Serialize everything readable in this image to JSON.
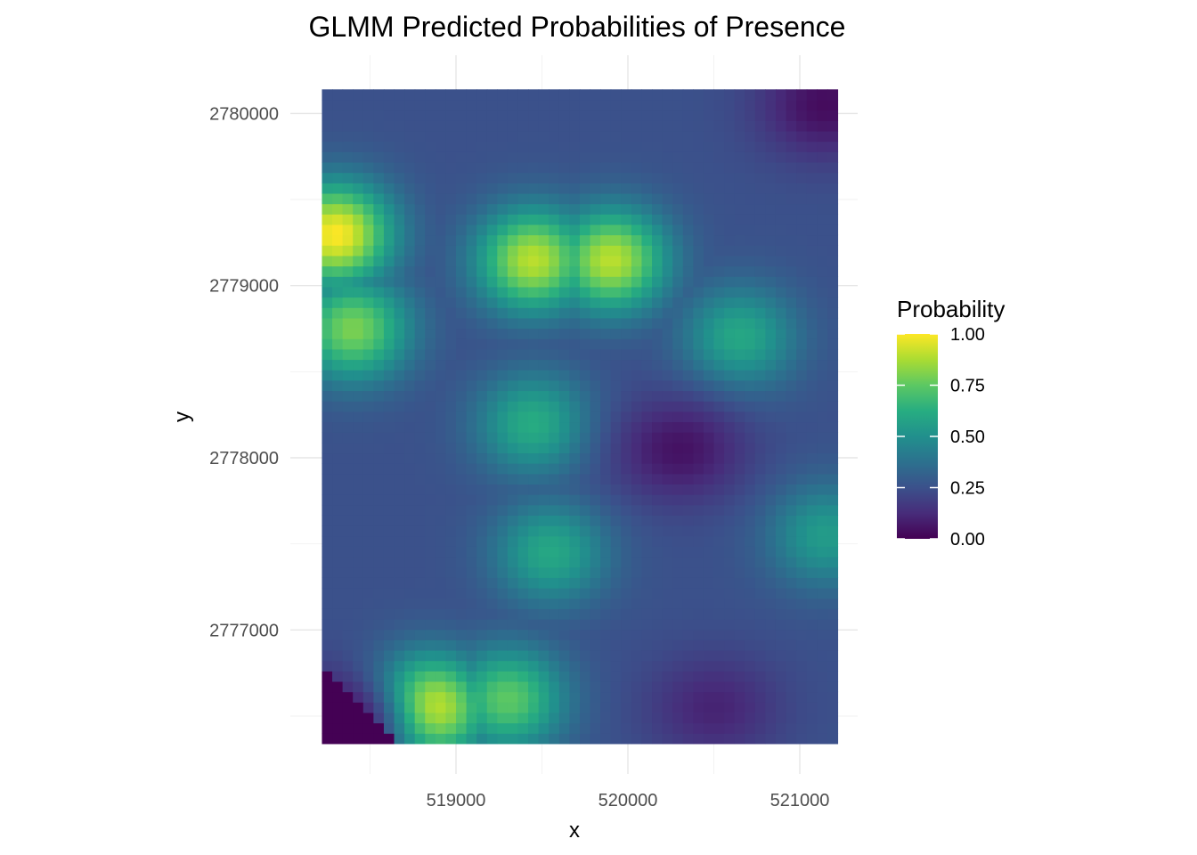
{
  "chart_data": {
    "type": "heatmap",
    "title": "GLMM Predicted Probabilities of Presence",
    "xlabel": "x",
    "ylabel": "y",
    "x_ticks": [
      519000,
      520000,
      521000
    ],
    "y_ticks": [
      2777000,
      2778000,
      2779000,
      2780000
    ],
    "xlim": [
      518220,
      521220
    ],
    "ylim": [
      2776340,
      2780140
    ],
    "grid": true,
    "colorscale": "viridis",
    "legend": {
      "title": "Probability",
      "position": "right",
      "range": [
        0,
        1
      ],
      "ticks": [
        "0.00",
        "0.25",
        "0.50",
        "0.75",
        "1.00"
      ]
    },
    "hotspots": [
      {
        "x": 518300,
        "y": 2779300,
        "value": 1.0
      },
      {
        "x": 518400,
        "y": 2778750,
        "value": 0.8
      },
      {
        "x": 518850,
        "y": 2776550,
        "value": 0.97
      },
      {
        "x": 519300,
        "y": 2776600,
        "value": 0.75
      },
      {
        "x": 519450,
        "y": 2779150,
        "value": 0.9
      },
      {
        "x": 519900,
        "y": 2779150,
        "value": 0.9
      },
      {
        "x": 519450,
        "y": 2778200,
        "value": 0.62
      },
      {
        "x": 519550,
        "y": 2777450,
        "value": 0.6
      },
      {
        "x": 521150,
        "y": 2777550,
        "value": 0.55
      },
      {
        "x": 520650,
        "y": 2778700,
        "value": 0.6
      }
    ],
    "lowspots": [
      {
        "x": 520300,
        "y": 2778050,
        "value": 0.05
      },
      {
        "x": 521150,
        "y": 2780050,
        "value": 0.03
      },
      {
        "x": 520500,
        "y": 2776550,
        "value": 0.1
      },
      {
        "x": 518300,
        "y": 2776450,
        "value": 0.0
      }
    ]
  }
}
